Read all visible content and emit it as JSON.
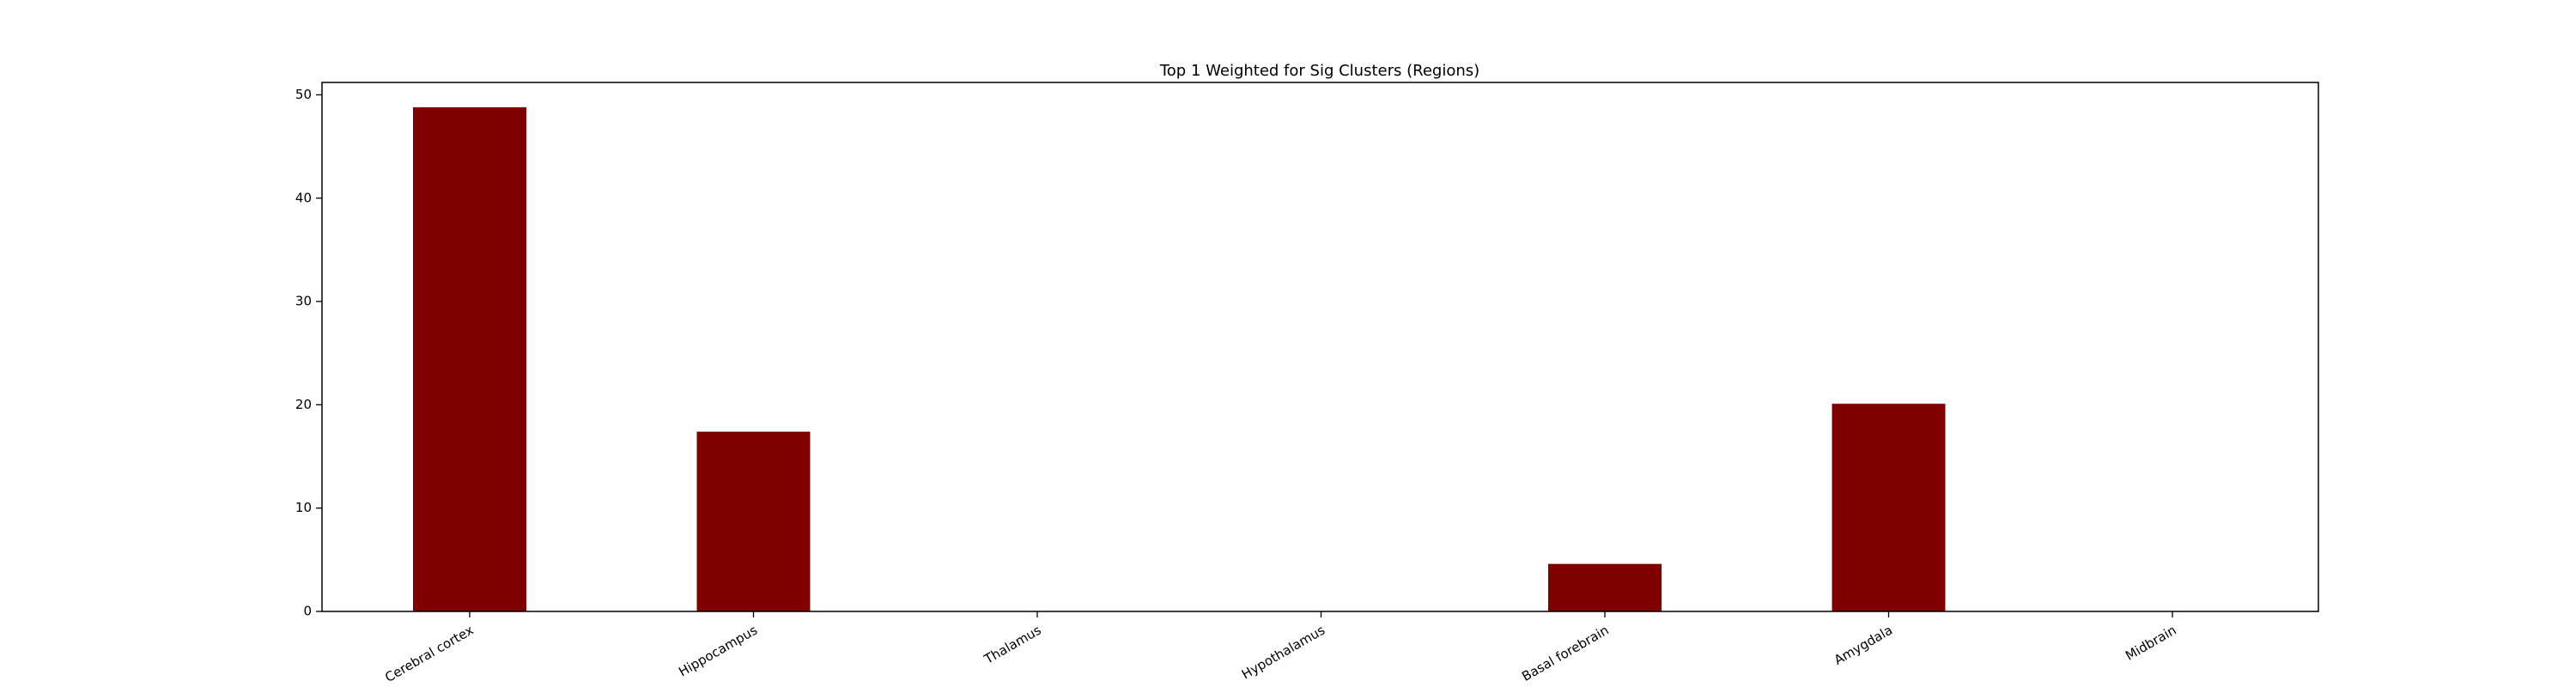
{
  "chart_data": {
    "type": "bar",
    "title": "Top 1 Weighted for Sig Clusters (Regions)",
    "xlabel": "",
    "ylabel": "",
    "categories": [
      "Cerebral cortex",
      "Hippocampus",
      "Thalamus",
      "Hypothalamus",
      "Basal forebrain",
      "Amygdala",
      "Midbrain"
    ],
    "values": [
      48.8,
      17.4,
      0,
      0,
      4.6,
      20.1,
      0
    ],
    "ylim": [
      0,
      51.2
    ],
    "yticks": [
      0,
      10,
      20,
      30,
      40,
      50
    ],
    "bar_color": "#800000",
    "grid": false,
    "legend": "none"
  }
}
